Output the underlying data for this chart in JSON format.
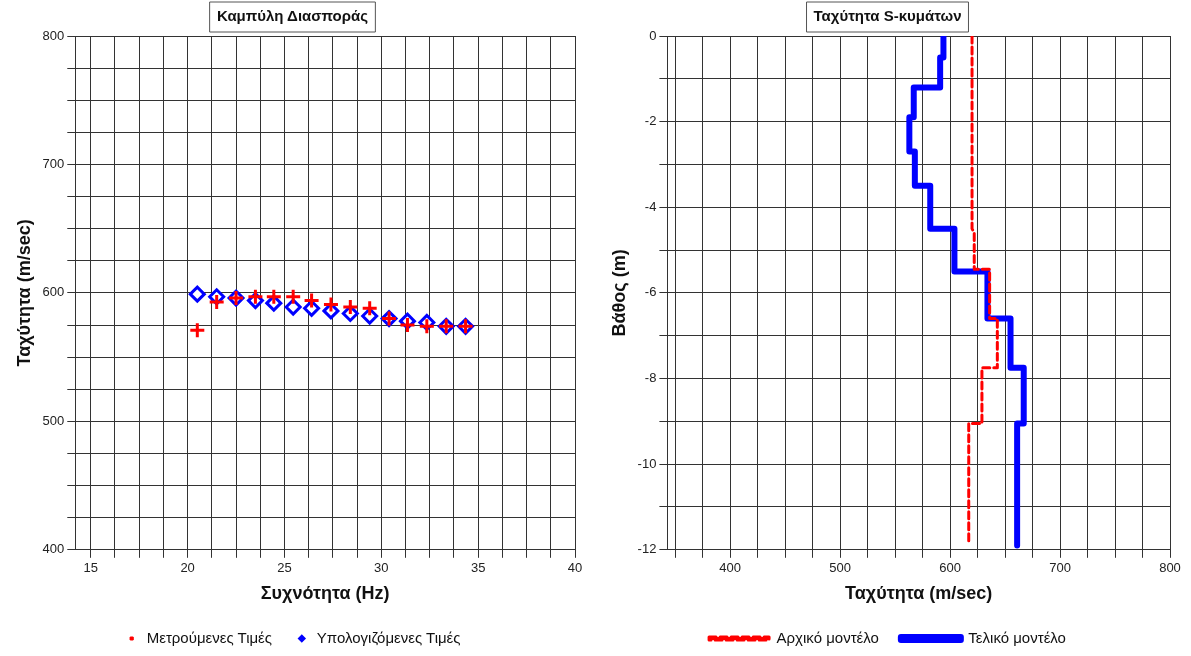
{
  "chart_data": [
    {
      "type": "scatter",
      "title": "Καμπύλη Διασποράς",
      "xlabel": "Συχνότητα (Hz)",
      "ylabel": "Ταχύτητα (m/sec)",
      "xlim": [
        14.2,
        40
      ],
      "ylim": [
        400,
        800
      ],
      "xticks": [
        15,
        {
          "value": 16.25,
          "label": null
        },
        {
          "value": 17.5,
          "label": null
        },
        {
          "value": 18.75,
          "label": null
        },
        20,
        {
          "value": 21.25,
          "label": null
        },
        {
          "value": 22.5,
          "label": null
        },
        {
          "value": 23.75,
          "label": null
        },
        25,
        {
          "value": 26.25,
          "label": null
        },
        {
          "value": 27.5,
          "label": null
        },
        {
          "value": 28.75,
          "label": null
        },
        30,
        {
          "value": 31.25,
          "label": null
        },
        {
          "value": 32.5,
          "label": null
        },
        {
          "value": 33.75,
          "label": null
        },
        35,
        {
          "value": 36.25,
          "label": null
        },
        {
          "value": 37.5,
          "label": null
        },
        {
          "value": 38.75,
          "label": null
        },
        40
      ],
      "yticks": [
        400,
        {
          "value": 425,
          "label": null
        },
        {
          "value": 450,
          "label": null
        },
        {
          "value": 475,
          "label": null
        },
        500,
        {
          "value": 525,
          "label": null
        },
        {
          "value": 550,
          "label": null
        },
        {
          "value": 575,
          "label": null
        },
        600,
        {
          "value": 625,
          "label": null
        },
        {
          "value": 650,
          "label": null
        },
        {
          "value": 675,
          "label": null
        },
        700,
        {
          "value": 725,
          "label": null
        },
        {
          "value": 750,
          "label": null
        },
        {
          "value": 775,
          "label": null
        },
        800
      ],
      "grid": true,
      "legend": "bottom",
      "series": [
        {
          "name": "Μετρούμενες Τιμές",
          "color": "#ff0000",
          "marker": "cross",
          "x": [
            20.5,
            21.5,
            22.5,
            23.5,
            24.45,
            25.45,
            26.4,
            27.4,
            28.4,
            29.4,
            30.4,
            31.35,
            32.35,
            33.35,
            34.35
          ],
          "values": [
            571,
            593,
            596,
            597,
            597,
            597,
            594,
            591,
            589,
            588,
            580,
            575,
            574,
            574,
            574
          ]
        },
        {
          "name": "Υπολογιζόμενες Τιμές",
          "color": "#0000ff",
          "marker": "diamond",
          "x": [
            20.5,
            21.5,
            22.5,
            23.5,
            24.45,
            25.45,
            26.4,
            27.4,
            28.4,
            29.4,
            30.4,
            31.35,
            32.35,
            33.35,
            34.35
          ],
          "values": [
            599,
            597,
            596,
            594,
            592,
            589,
            588,
            586,
            584,
            582,
            580,
            578,
            577,
            574,
            574
          ]
        }
      ]
    },
    {
      "type": "line",
      "title": "Ταχύτητα S-κυμάτων",
      "xlabel": "Ταχύτητα (m/sec)",
      "ylabel": "Βάθος (m)",
      "xlim": [
        343,
        800
      ],
      "ylim": [
        -12,
        0
      ],
      "xticks": [
        {
          "value": 350,
          "label": null
        },
        {
          "value": 375,
          "label": null
        },
        400,
        {
          "value": 425,
          "label": null
        },
        {
          "value": 450,
          "label": null
        },
        {
          "value": 475,
          "label": null
        },
        500,
        {
          "value": 525,
          "label": null
        },
        {
          "value": 550,
          "label": null
        },
        {
          "value": 575,
          "label": null
        },
        600,
        {
          "value": 625,
          "label": null
        },
        {
          "value": 650,
          "label": null
        },
        {
          "value": 675,
          "label": null
        },
        700,
        {
          "value": 725,
          "label": null
        },
        {
          "value": 750,
          "label": null
        },
        {
          "value": 775,
          "label": null
        },
        800
      ],
      "yticks": [
        -12,
        {
          "value": -11,
          "label": null
        },
        -10,
        {
          "value": -9,
          "label": null
        },
        -8,
        {
          "value": -7,
          "label": null
        },
        -6,
        {
          "value": -5,
          "label": null
        },
        -4,
        {
          "value": -3,
          "label": null
        },
        -2,
        {
          "value": -1,
          "label": null
        },
        0
      ],
      "grid": true,
      "legend": "bottom",
      "marker": "none",
      "series": [
        {
          "name": "Αρχικό μοντέλο",
          "color": "#ff0000",
          "line_style": "dashed",
          "x": [
            620,
            620,
            622,
            622,
            636,
            636,
            643,
            643,
            629,
            629,
            617,
            617
          ],
          "values": [
            0,
            -4.5,
            -4.6,
            -5.45,
            -5.45,
            -6.6,
            -6.6,
            -7.75,
            -7.75,
            -9.05,
            -9.05,
            -11.8
          ]
        },
        {
          "name": "Τελικό μοντέλο",
          "color": "#0000ff",
          "line_style": "solid",
          "x": [
            594,
            594,
            591,
            591,
            567,
            567,
            563,
            563,
            568,
            568,
            582,
            582,
            604,
            604,
            634,
            634,
            655,
            655,
            667,
            667,
            661,
            661
          ],
          "values": [
            0,
            -0.5,
            -0.5,
            -1.2,
            -1.2,
            -1.9,
            -1.9,
            -2.7,
            -2.7,
            -3.5,
            -3.5,
            -4.5,
            -4.5,
            -5.5,
            -5.5,
            -6.6,
            -6.6,
            -7.75,
            -7.75,
            -9.05,
            -9.05,
            -11.9
          ]
        }
      ]
    }
  ]
}
